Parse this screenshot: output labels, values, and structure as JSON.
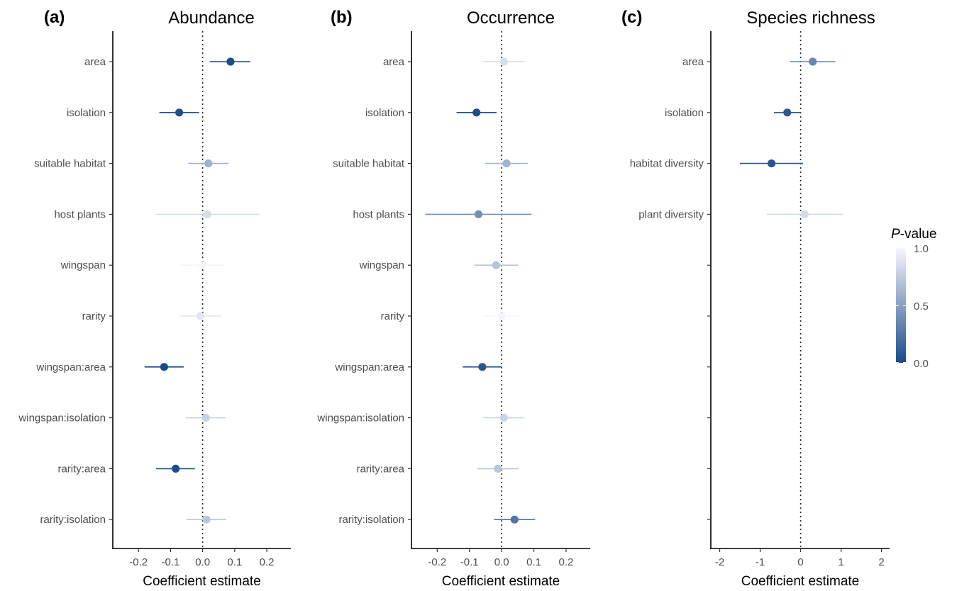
{
  "legend": {
    "title_italic": "P",
    "title_rest": "-value",
    "ticks": [
      "1.0",
      "0.5",
      "0.0"
    ],
    "color_low": "#1a4a8a",
    "color_high": "#f7f7fb"
  },
  "chart_data": [
    {
      "type": "scatter",
      "panel": "(a)",
      "title": "Abundance",
      "xlabel": "Coefficient estimate",
      "xlim": [
        -0.28,
        0.275
      ],
      "xticks": [
        -0.2,
        -0.1,
        0.0,
        0.1,
        0.2
      ],
      "xtick_labels": [
        "-0.2",
        "-0.1",
        "0.0",
        "0.1",
        "0.2"
      ],
      "reference_line": 0,
      "categories": [
        "area",
        "isolation",
        "suitable habitat",
        "host plants",
        "wingspan",
        "rarity",
        "wingspan:area",
        "wingspan:isolation",
        "rarity:area",
        "rarity:isolation"
      ],
      "estimates": [
        0.087,
        -0.073,
        0.018,
        0.015,
        0.0,
        -0.007,
        -0.12,
        0.01,
        -0.084,
        0.012
      ],
      "ci_low": [
        0.022,
        -0.135,
        -0.045,
        -0.147,
        -0.072,
        -0.07,
        -0.181,
        -0.053,
        -0.145,
        -0.05
      ],
      "ci_high": [
        0.149,
        -0.011,
        0.081,
        0.177,
        0.068,
        0.058,
        -0.059,
        0.072,
        -0.024,
        0.073
      ],
      "p_values": [
        0.01,
        0.03,
        0.6,
        0.85,
        0.99,
        0.9,
        0.002,
        0.78,
        0.01,
        0.72
      ]
    },
    {
      "type": "scatter",
      "panel": "(b)",
      "title": "Occurrence",
      "xlabel": "Coefficient estimate",
      "xlim": [
        -0.28,
        0.275
      ],
      "xticks": [
        -0.2,
        -0.1,
        0.0,
        0.1,
        0.2
      ],
      "xtick_labels": [
        "-0.2",
        "-0.1",
        "0.0",
        "0.1",
        "0.2"
      ],
      "reference_line": 0,
      "categories": [
        "area",
        "isolation",
        "suitable habitat",
        "host plants",
        "wingspan",
        "rarity",
        "wingspan:area",
        "wingspan:isolation",
        "rarity:area",
        "rarity:isolation"
      ],
      "estimates": [
        0.007,
        -0.078,
        0.015,
        -0.072,
        -0.017,
        0.0,
        -0.06,
        0.007,
        -0.012,
        0.04
      ],
      "ci_low": [
        -0.058,
        -0.14,
        -0.051,
        -0.237,
        -0.085,
        -0.058,
        -0.121,
        -0.057,
        -0.076,
        -0.024
      ],
      "ci_high": [
        0.072,
        -0.016,
        0.081,
        0.093,
        0.051,
        0.058,
        0.001,
        0.071,
        0.052,
        0.104
      ],
      "p_values": [
        0.85,
        0.02,
        0.6,
        0.4,
        0.7,
        0.99,
        0.07,
        0.8,
        0.72,
        0.25
      ]
    },
    {
      "type": "scatter",
      "panel": "(c)",
      "title": "Species richness",
      "xlabel": "Coefficient estimate",
      "xlim": [
        -2.22,
        2.2
      ],
      "xticks": [
        -2,
        -1,
        0,
        1,
        2
      ],
      "xtick_labels": [
        "-2",
        "-1",
        "0",
        "1",
        "2"
      ],
      "reference_line": 0,
      "categories": [
        "area",
        "isolation",
        "habitat diversity",
        "plant diversity",
        "",
        "",
        "",
        "",
        "",
        ""
      ],
      "estimates": [
        0.3,
        -0.33,
        -0.72,
        0.1
      ],
      "ci_low": [
        -0.26,
        -0.66,
        -1.5,
        -0.84
      ],
      "ci_high": [
        0.86,
        0.0,
        0.06,
        1.04
      ],
      "p_values": [
        0.35,
        0.08,
        0.06,
        0.83
      ]
    }
  ]
}
